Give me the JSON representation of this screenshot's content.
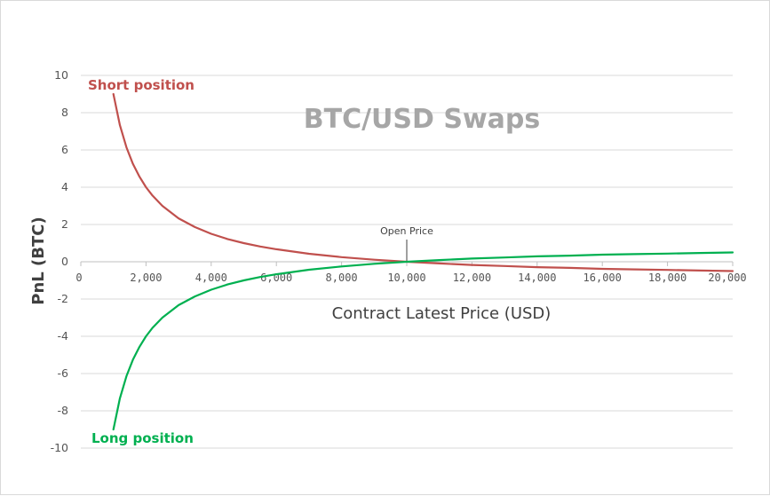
{
  "chart_data": {
    "type": "line",
    "title": "BTC/USD Swaps",
    "xlabel": "Contract Latest Price (USD)",
    "ylabel": "PnL (BTC)",
    "xlim": [
      0,
      20000
    ],
    "ylim": [
      -10,
      10
    ],
    "xticks": [
      0,
      2000,
      4000,
      6000,
      8000,
      10000,
      12000,
      14000,
      16000,
      18000,
      20000
    ],
    "xtick_labels": [
      "0",
      "2,000",
      "4,000",
      "6,000",
      "8,000",
      "10,000",
      "12,000",
      "14,000",
      "16,000",
      "18,000",
      "20,000"
    ],
    "yticks": [
      -10,
      -8,
      -6,
      -4,
      -2,
      0,
      2,
      4,
      6,
      8,
      10
    ],
    "ytick_labels": [
      "-10",
      "-8",
      "-6",
      "-4",
      "-2",
      "0",
      "2",
      "4",
      "6",
      "8",
      "10"
    ],
    "grid": true,
    "annotation": {
      "label": "Open Price",
      "x": 10000
    },
    "series": [
      {
        "name": "Short position",
        "color": "#c0504d",
        "x": [
          1000,
          1200,
          1400,
          1600,
          1800,
          2000,
          2200,
          2500,
          3000,
          3500,
          4000,
          4500,
          5000,
          5500,
          6000,
          7000,
          8000,
          9000,
          10000,
          11000,
          12000,
          13000,
          14000,
          15000,
          16000,
          17000,
          18000,
          19000,
          20000
        ],
        "y": [
          9.0,
          7.33,
          6.14,
          5.25,
          4.56,
          4.0,
          3.55,
          3.0,
          2.33,
          1.86,
          1.5,
          1.22,
          1.0,
          0.82,
          0.67,
          0.43,
          0.25,
          0.11,
          0.0,
          -0.09,
          -0.17,
          -0.23,
          -0.29,
          -0.33,
          -0.38,
          -0.41,
          -0.44,
          -0.47,
          -0.5
        ]
      },
      {
        "name": "Long position",
        "color": "#00b050",
        "x": [
          1000,
          1200,
          1400,
          1600,
          1800,
          2000,
          2200,
          2500,
          3000,
          3500,
          4000,
          4500,
          5000,
          5500,
          6000,
          7000,
          8000,
          9000,
          10000,
          11000,
          12000,
          13000,
          14000,
          15000,
          16000,
          17000,
          18000,
          19000,
          20000
        ],
        "y": [
          -9.0,
          -7.33,
          -6.14,
          -5.25,
          -4.56,
          -4.0,
          -3.55,
          -3.0,
          -2.33,
          -1.86,
          -1.5,
          -1.22,
          -1.0,
          -0.82,
          -0.67,
          -0.43,
          -0.25,
          -0.11,
          0.0,
          0.09,
          0.17,
          0.23,
          0.29,
          0.33,
          0.38,
          0.41,
          0.44,
          0.47,
          0.5
        ]
      }
    ]
  }
}
